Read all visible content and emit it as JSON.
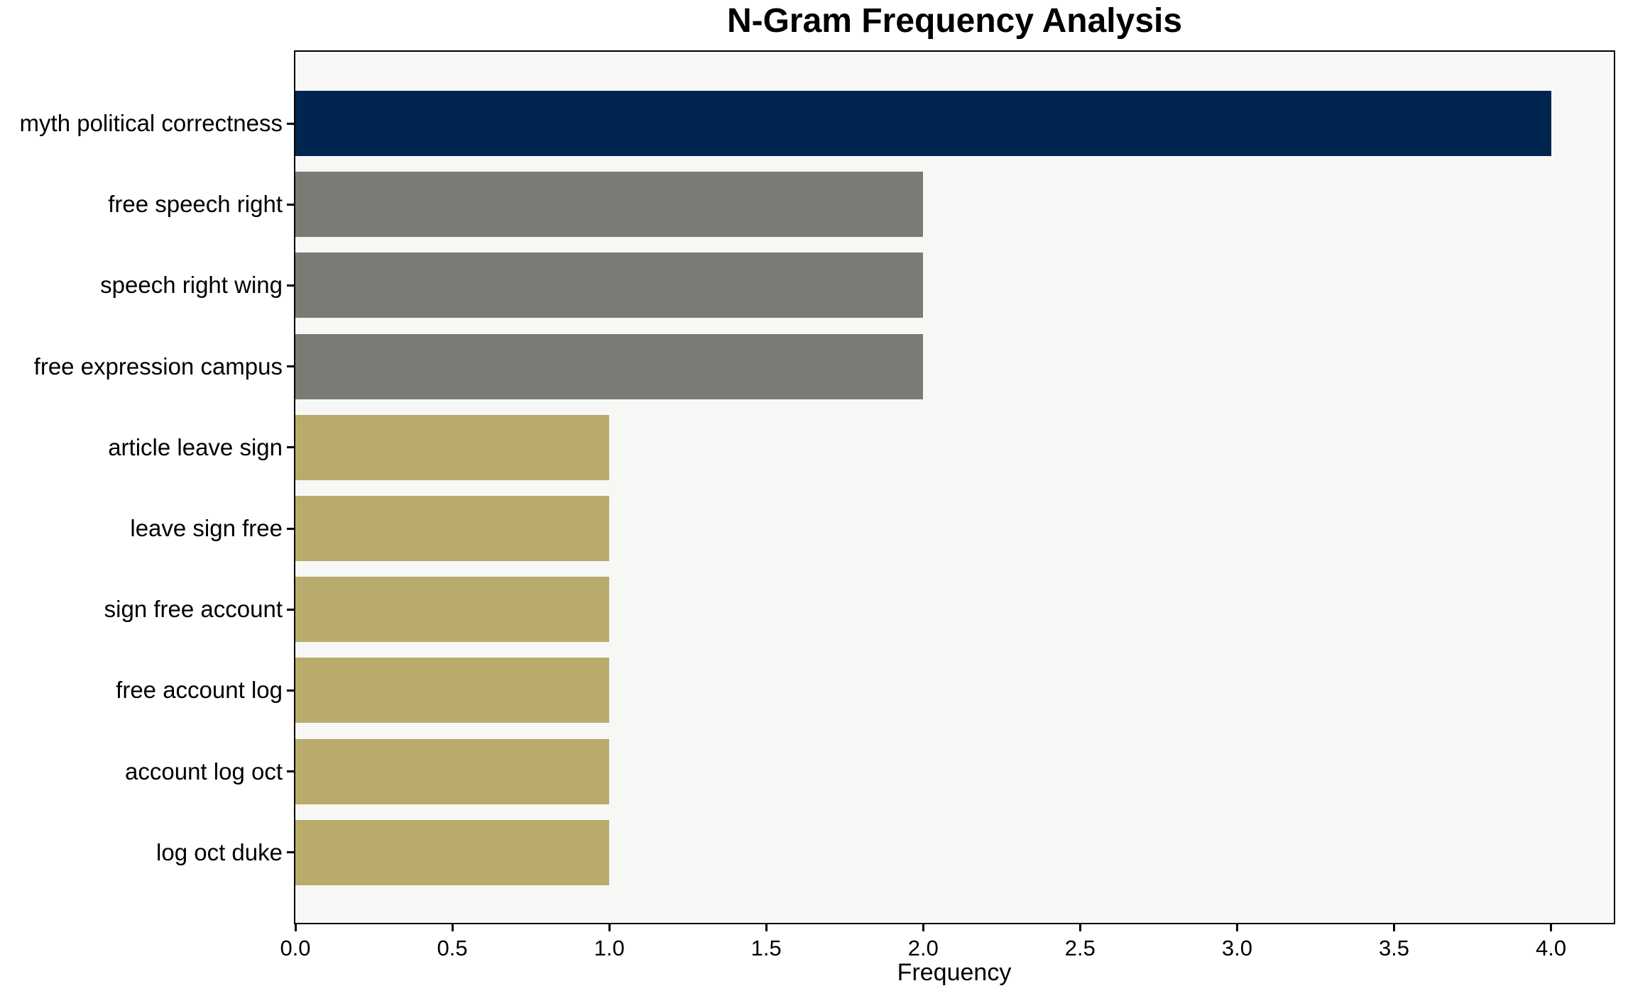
{
  "chart_data": {
    "type": "bar",
    "orientation": "horizontal",
    "title": "N-Gram Frequency Analysis",
    "xlabel": "Frequency",
    "ylabel": "",
    "categories": [
      "myth political correctness",
      "free speech right",
      "speech right wing",
      "free expression campus",
      "article leave sign",
      "leave sign free",
      "sign free account",
      "free account log",
      "account log oct",
      "log oct duke"
    ],
    "values": [
      4,
      2,
      2,
      2,
      1,
      1,
      1,
      1,
      1,
      1
    ],
    "bar_colors": [
      "#00254e",
      "#7b7a74",
      "#7b7a74",
      "#7b7a74",
      "#b9ab6b",
      "#b9ab6b",
      "#b9ab6b",
      "#b9ab6b",
      "#b9ab6b",
      "#b9ab6b"
    ],
    "xlim": [
      0,
      4.2
    ],
    "xticks": [
      0,
      0.5,
      1,
      1.5,
      2,
      2.5,
      3,
      3.5,
      4
    ],
    "xtick_labels": [
      "0.0",
      "0.5",
      "1.0",
      "1.5",
      "2.0",
      "2.5",
      "3.0",
      "3.5",
      "4.0"
    ],
    "grid": false,
    "legend": false,
    "colors": {
      "plot_background": "#f7f7f6",
      "figure_background": "#ffffff",
      "spine": "#000000",
      "text": "#000000"
    }
  }
}
